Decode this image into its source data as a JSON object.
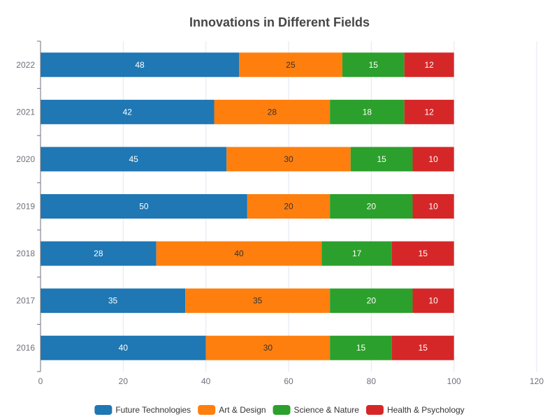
{
  "chart_data": {
    "type": "bar",
    "orientation": "horizontal",
    "stacked": true,
    "title": "Innovations in Different Fields",
    "xlabel": "",
    "ylabel": "",
    "categories": [
      "2016",
      "2017",
      "2018",
      "2019",
      "2020",
      "2021",
      "2022"
    ],
    "series": [
      {
        "name": "Future Technologies",
        "color": "#1f77b4",
        "label_color": "#ffffff",
        "values": [
          40,
          35,
          28,
          50,
          45,
          42,
          48
        ]
      },
      {
        "name": "Art & Design",
        "color": "#ff7f0e",
        "label_color": "#333333",
        "values": [
          30,
          35,
          40,
          20,
          30,
          28,
          25
        ]
      },
      {
        "name": "Science & Nature",
        "color": "#2ca02c",
        "label_color": "#ffffff",
        "values": [
          15,
          20,
          17,
          20,
          15,
          18,
          15
        ]
      },
      {
        "name": "Health & Psychology",
        "color": "#d62728",
        "label_color": "#ffffff",
        "values": [
          15,
          10,
          15,
          10,
          10,
          12,
          12
        ]
      }
    ],
    "xlim": [
      0,
      120
    ],
    "xticks": [
      0,
      20,
      40,
      60,
      80,
      100,
      120
    ],
    "grid": "vertical",
    "legend_position": "bottom",
    "data_labels": true
  }
}
